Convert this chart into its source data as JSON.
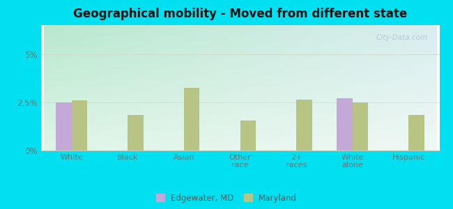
{
  "title": "Geographical mobility - Moved from different state",
  "categories": [
    "White",
    "Black",
    "Asian",
    "Other\nrace",
    "2+\nraces",
    "White\nalone",
    "Hispanic"
  ],
  "edgewater_values": [
    2.5,
    0,
    0,
    0,
    0,
    2.7,
    0
  ],
  "maryland_values": [
    2.6,
    1.85,
    3.25,
    1.55,
    2.65,
    2.5,
    1.85
  ],
  "edgewater_color": "#c4a8d8",
  "maryland_color": "#b8c484",
  "bg_color_topleft": "#c8eedd",
  "bg_color_topright": "#e0f0f0",
  "bg_color_bottom": "#eaf5e8",
  "outer_bg": "#00e0f0",
  "ylim": [
    0,
    6.5
  ],
  "ytick_labels": [
    "0%",
    "2.5%",
    "5%"
  ],
  "ytick_vals": [
    0,
    2.5,
    5.0
  ],
  "bar_width": 0.28,
  "legend_edgewater": "Edgewater, MD",
  "legend_maryland": "Maryland",
  "watermark": "City-Data.com"
}
